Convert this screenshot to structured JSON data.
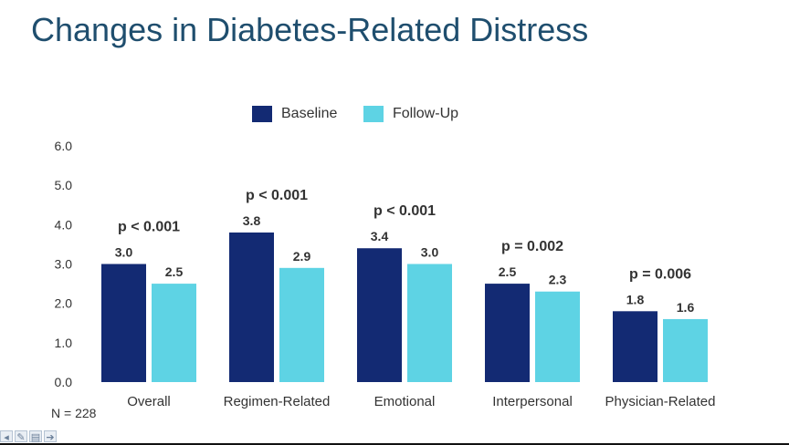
{
  "slide": {
    "title": "Changes in Diabetes-Related Distress",
    "note": "N = 228"
  },
  "colors": {
    "title": "#1f4e6e",
    "baseline": "#132a73",
    "followup": "#5ed3e4",
    "text": "#333333"
  },
  "legend": [
    {
      "label": "Baseline",
      "color": "#132a73"
    },
    {
      "label": "Follow-Up",
      "color": "#5ed3e4"
    }
  ],
  "chart_data": {
    "type": "bar",
    "title": "",
    "xlabel": "",
    "ylabel": "",
    "categories": [
      "Overall",
      "Regimen-Related",
      "Emotional",
      "Interpersonal",
      "Physician-Related"
    ],
    "series": [
      {
        "name": "Baseline",
        "values": [
          3.0,
          3.8,
          3.4,
          2.5,
          1.8
        ],
        "labels": [
          "3.0",
          "3.8",
          "3.4",
          "2.5",
          "1.8"
        ]
      },
      {
        "name": "Follow-Up",
        "values": [
          2.5,
          2.9,
          3.0,
          2.3,
          1.6
        ],
        "labels": [
          "2.5",
          "2.9",
          "3.0",
          "2.3",
          "1.6"
        ]
      }
    ],
    "p_values": [
      "p < 0.001",
      "p < 0.001",
      "p < 0.001",
      "p = 0.002",
      "p = 0.006"
    ],
    "ylim": [
      0,
      6
    ],
    "yticks": [
      "0.0",
      "1.0",
      "2.0",
      "3.0",
      "4.0",
      "5.0",
      "6.0"
    ],
    "grid": false,
    "legend_position": "top"
  },
  "nav": {
    "icons": [
      "back-arrow-icon",
      "pen-icon",
      "slides-menu-icon",
      "forward-arrow-icon"
    ],
    "glyphs": [
      "◂",
      "✎",
      "▤",
      "➔"
    ]
  }
}
